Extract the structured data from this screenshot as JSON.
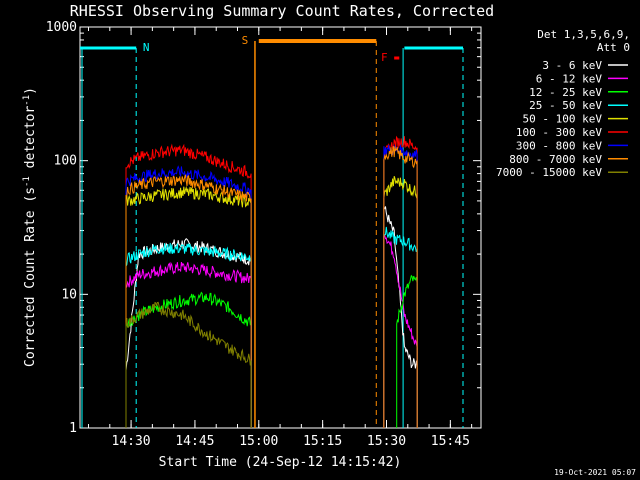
{
  "chart_data": {
    "type": "line",
    "title": "RHESSI Observing Summary Count Rates, Corrected",
    "xlabel": "Start Time (24-Sep-12 14:15:42)",
    "ylabel_main": "Corrected Count Rate (s",
    "ylabel_sup1": "-1",
    "ylabel_mid": " detector",
    "ylabel_sup2": "-1",
    "ylabel_end": ")",
    "y_scale": "log",
    "ylim": [
      1,
      1000
    ],
    "xlim_minutes": [
      14.3,
      15.87
    ],
    "xticks": [
      {
        "t": 14.5,
        "label": "14:30"
      },
      {
        "t": 14.75,
        "label": "14:45"
      },
      {
        "t": 15.0,
        "label": "15:00"
      },
      {
        "t": 15.25,
        "label": "15:15"
      },
      {
        "t": 15.5,
        "label": "15:30"
      },
      {
        "t": 15.75,
        "label": "15:45"
      }
    ],
    "yticks": [
      {
        "v": 1,
        "label": "1"
      },
      {
        "v": 10,
        "label": "10"
      },
      {
        "v": 100,
        "label": "100"
      },
      {
        "v": 1000,
        "label": "1000"
      }
    ],
    "legend": {
      "placement": "right",
      "header1": "Det 1,3,5,6,9,",
      "header2": "Att 0"
    },
    "series": [
      {
        "name": "3 - 6 keV",
        "color": "#ffffff",
        "seg1": [
          [
            14.48,
            2.7
          ],
          [
            14.53,
            20
          ],
          [
            14.6,
            22
          ],
          [
            14.7,
            24
          ],
          [
            14.8,
            22
          ],
          [
            14.88,
            20
          ],
          [
            14.97,
            18
          ]
        ],
        "seg2": [
          [
            15.49,
            45
          ],
          [
            15.53,
            28
          ],
          [
            15.57,
            4
          ],
          [
            15.6,
            3
          ],
          [
            15.62,
            3
          ]
        ]
      },
      {
        "name": "6 - 12 keV",
        "color": "#ff00ff",
        "seg1": [
          [
            14.48,
            12
          ],
          [
            14.53,
            14
          ],
          [
            14.6,
            15
          ],
          [
            14.7,
            16
          ],
          [
            14.8,
            15
          ],
          [
            14.88,
            14
          ],
          [
            14.97,
            13
          ]
        ],
        "seg2": [
          [
            15.49,
            30
          ],
          [
            15.53,
            20
          ],
          [
            15.57,
            7
          ],
          [
            15.6,
            5
          ],
          [
            15.62,
            4
          ]
        ]
      },
      {
        "name": "12 - 25 keV",
        "color": "#00ff00",
        "seg1": [
          [
            14.48,
            6
          ],
          [
            14.53,
            7
          ],
          [
            14.6,
            8
          ],
          [
            14.7,
            9
          ],
          [
            14.8,
            9.5
          ],
          [
            14.88,
            8
          ],
          [
            14.97,
            6
          ]
        ],
        "seg2": [
          [
            15.54,
            6
          ],
          [
            15.57,
            10
          ],
          [
            15.6,
            13
          ],
          [
            15.62,
            12
          ]
        ]
      },
      {
        "name": "25 - 50 keV",
        "color": "#00ffff",
        "seg1": [
          [
            14.48,
            18
          ],
          [
            14.53,
            20
          ],
          [
            14.6,
            22
          ],
          [
            14.7,
            22
          ],
          [
            14.8,
            21
          ],
          [
            14.88,
            20
          ],
          [
            14.97,
            19
          ]
        ],
        "seg2": [
          [
            15.49,
            30
          ],
          [
            15.53,
            26
          ],
          [
            15.57,
            25
          ],
          [
            15.6,
            23
          ],
          [
            15.62,
            22
          ]
        ]
      },
      {
        "name": "50 - 100 keV",
        "color": "#e0e000",
        "seg1": [
          [
            14.48,
            50
          ],
          [
            14.53,
            52
          ],
          [
            14.6,
            55
          ],
          [
            14.7,
            58
          ],
          [
            14.8,
            56
          ],
          [
            14.88,
            52
          ],
          [
            14.97,
            48
          ]
        ],
        "seg2": [
          [
            15.49,
            55
          ],
          [
            15.53,
            70
          ],
          [
            15.57,
            68
          ],
          [
            15.6,
            60
          ],
          [
            15.62,
            58
          ]
        ]
      },
      {
        "name": "100 - 300 keV",
        "color": "#ff0000",
        "seg1": [
          [
            14.48,
            95
          ],
          [
            14.53,
            105
          ],
          [
            14.6,
            115
          ],
          [
            14.7,
            120
          ],
          [
            14.8,
            105
          ],
          [
            14.88,
            92
          ],
          [
            14.97,
            80
          ]
        ],
        "seg2": [
          [
            15.49,
            110
          ],
          [
            15.53,
            135
          ],
          [
            15.57,
            140
          ],
          [
            15.6,
            130
          ],
          [
            15.62,
            125
          ]
        ]
      },
      {
        "name": "300 - 800 keV",
        "color": "#0000ff",
        "seg1": [
          [
            14.48,
            70
          ],
          [
            14.53,
            75
          ],
          [
            14.6,
            80
          ],
          [
            14.7,
            82
          ],
          [
            14.8,
            75
          ],
          [
            14.88,
            68
          ],
          [
            14.97,
            60
          ]
        ],
        "seg2": [
          [
            15.49,
            120
          ],
          [
            15.53,
            120
          ],
          [
            15.57,
            118
          ],
          [
            15.6,
            112
          ],
          [
            15.62,
            110
          ]
        ]
      },
      {
        "name": "800 - 7000 keV",
        "color": "#ff8c00",
        "seg1": [
          [
            14.48,
            60
          ],
          [
            14.53,
            65
          ],
          [
            14.6,
            70
          ],
          [
            14.7,
            72
          ],
          [
            14.8,
            65
          ],
          [
            14.88,
            58
          ],
          [
            14.97,
            52
          ]
        ],
        "seg2": [
          [
            15.49,
            110
          ],
          [
            15.53,
            118
          ],
          [
            15.57,
            105
          ],
          [
            15.6,
            100
          ],
          [
            15.62,
            98
          ]
        ]
      },
      {
        "name": "7000 - 15000 keV",
        "color": "#808000",
        "seg1": [
          [
            14.48,
            6
          ],
          [
            14.53,
            7
          ],
          [
            14.6,
            8
          ],
          [
            14.7,
            7
          ],
          [
            14.8,
            5
          ],
          [
            14.88,
            4
          ],
          [
            14.97,
            3.2
          ]
        ],
        "seg2": []
      }
    ],
    "flags": [
      {
        "label": "N",
        "color": "#00ffff",
        "t": 14.52
      },
      {
        "label": "S",
        "color": "#ff8c00",
        "t": 14.985
      },
      {
        "label": "F",
        "color": "#ff0000",
        "t": 15.48
      }
    ],
    "footer_date": "19-Oct-2021 05:07"
  }
}
